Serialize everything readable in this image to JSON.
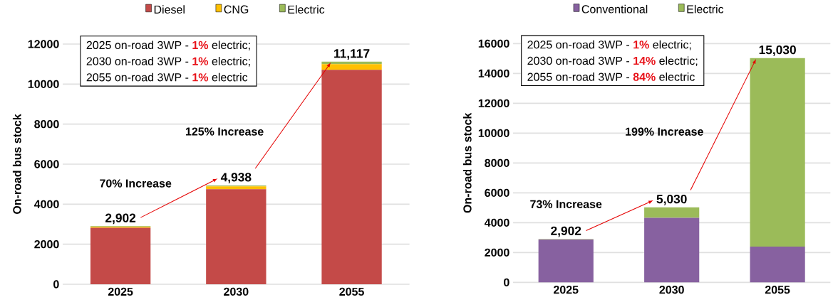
{
  "chart_data": [
    {
      "type": "bar",
      "stacked": true,
      "categories": [
        "2025",
        "2030",
        "2055"
      ],
      "series": [
        {
          "name": "Diesel",
          "color": "#c44a48",
          "values": [
            2822,
            4748,
            10717
          ]
        },
        {
          "name": "CNG",
          "color": "#ffc000",
          "values": [
            50,
            140,
            280
          ]
        },
        {
          "name": "Electric",
          "color": "#9bbb59",
          "values": [
            30,
            50,
            120
          ]
        }
      ],
      "ylabel": "On-road bus stock",
      "ylim": [
        0,
        12000
      ],
      "yticks": [
        0,
        2000,
        4000,
        6000,
        8000,
        10000,
        12000
      ],
      "grid": "y",
      "legend": "top",
      "totals": [
        "2,902",
        "4,938",
        "11,117"
      ],
      "annotations": [
        "2025 on-road 3WP  - **1%** electric;",
        "2030 on-road 3WP - **1%** electric;",
        "2055 on-road 3WP - **1%** electric",
        "70% Increase",
        "125% Increase"
      ]
    },
    {
      "type": "bar",
      "stacked": true,
      "categories": [
        "2025",
        "2030",
        "2055"
      ],
      "series": [
        {
          "name": "Conventional",
          "color": "#8761a0",
          "values": [
            2872,
            4330,
            2400
          ]
        },
        {
          "name": "Electric",
          "color": "#9bbb59",
          "values": [
            30,
            700,
            12630
          ]
        }
      ],
      "ylabel": "On-road bus stock",
      "ylim": [
        0,
        16000
      ],
      "yticks": [
        0,
        2000,
        4000,
        6000,
        8000,
        10000,
        12000,
        14000,
        16000
      ],
      "grid": "y",
      "legend": "top",
      "totals": [
        "2,902",
        "5,030",
        "15,030"
      ],
      "annotations": [
        "2025 on-road 3WP  - **1%** electric;",
        "2030 on-road 3WP - **14%** electric;",
        "2055 on-road 3WP - **84%** electric",
        "73% Increase",
        "199% Increase"
      ]
    }
  ]
}
